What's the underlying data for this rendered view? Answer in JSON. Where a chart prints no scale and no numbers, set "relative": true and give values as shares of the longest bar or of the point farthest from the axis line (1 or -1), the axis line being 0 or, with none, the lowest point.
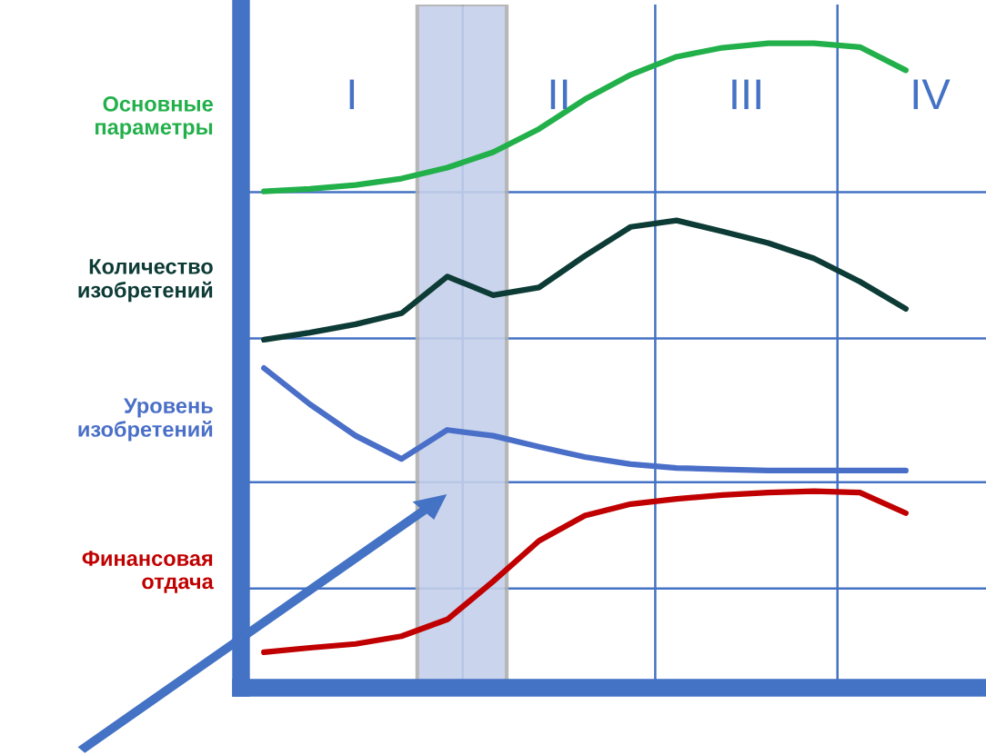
{
  "chart_data": {
    "type": "line",
    "relative": true,
    "legend": false,
    "marker": "none",
    "line_style": "solid",
    "categories": [
      null,
      null,
      null,
      null,
      null,
      null,
      null,
      null,
      null,
      null,
      null,
      null,
      null,
      null,
      null
    ],
    "series": [
      {
        "name": "Основные параметры",
        "color": "#22b04a",
        "values": [
          0.77,
          0.774,
          0.78,
          0.79,
          0.807,
          0.831,
          0.867,
          0.913,
          0.951,
          0.979,
          0.993,
          1.0,
          1.0,
          0.994,
          0.958
        ]
      },
      {
        "name": "Количество изобретений",
        "color": "#0d3b36",
        "values": [
          0.54,
          0.551,
          0.564,
          0.581,
          0.638,
          0.609,
          0.621,
          0.67,
          0.715,
          0.725,
          0.708,
          0.69,
          0.666,
          0.63,
          0.588
        ]
      },
      {
        "name": "Уровень изобретений",
        "color": "#4a6fc8",
        "values": [
          0.496,
          0.44,
          0.391,
          0.355,
          0.4,
          0.391,
          0.374,
          0.358,
          0.347,
          0.341,
          0.339,
          0.337,
          0.337,
          0.337,
          0.337
        ]
      },
      {
        "name": "Финансовая отдача",
        "color": "#c00000",
        "values": [
          0.055,
          0.062,
          0.068,
          0.08,
          0.106,
          0.165,
          0.228,
          0.267,
          0.285,
          0.293,
          0.299,
          0.303,
          0.305,
          0.303,
          0.271
        ]
      }
    ],
    "ref_lines": [
      {
        "axis": "y",
        "value": 0.769,
        "color": "#4472c4"
      },
      {
        "axis": "y",
        "value": 0.542,
        "color": "#4472c4"
      },
      {
        "axis": "y",
        "value": 0.319,
        "color": "#4472c4"
      },
      {
        "axis": "y",
        "value": 0.154,
        "color": "#4472c4"
      }
    ],
    "annotations": [
      "I",
      "II",
      "III",
      "IV"
    ]
  }
}
